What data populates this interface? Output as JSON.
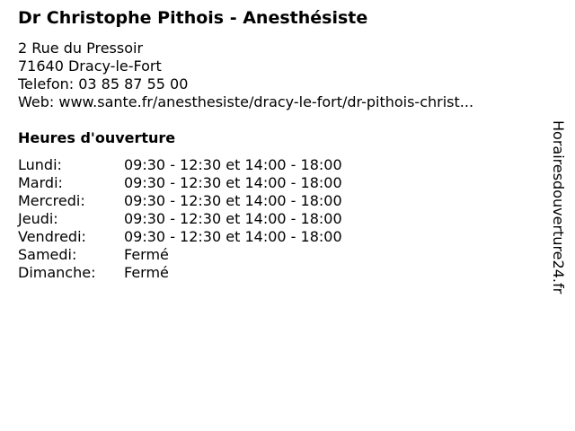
{
  "title": "Dr Christophe Pithois - Anesthésiste",
  "address": [
    "2 Rue du Pressoir",
    "71640 Dracy-le-Fort",
    "Telefon: 03 85 87 55 00",
    "Web: www.sante.fr/anesthesiste/dracy-le-fort/dr-pithois-christ..."
  ],
  "hours_title": "Heures d'ouverture",
  "hours": [
    {
      "day": "Lundi:",
      "time": "09:30 - 12:30 et 14:00 - 18:00"
    },
    {
      "day": "Mardi:",
      "time": "09:30 - 12:30 et 14:00 - 18:00"
    },
    {
      "day": "Mercredi:",
      "time": "09:30 - 12:30 et 14:00 - 18:00"
    },
    {
      "day": "Jeudi:",
      "time": "09:30 - 12:30 et 14:00 - 18:00"
    },
    {
      "day": "Vendredi:",
      "time": "09:30 - 12:30 et 14:00 - 18:00"
    },
    {
      "day": "Samedi:",
      "time": "Fermé"
    },
    {
      "day": "Dimanche:",
      "time": "Fermé"
    }
  ],
  "watermark": "Horairesdouverture24.fr"
}
